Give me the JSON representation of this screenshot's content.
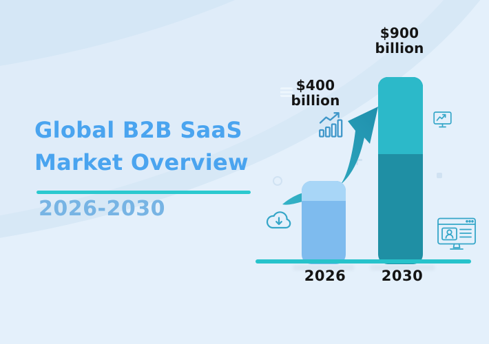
{
  "header": {
    "title_line1": "Global B2B SaaS",
    "title_line2": "Market Overview",
    "subtitle": "2026-2030"
  },
  "chart_data": {
    "type": "bar",
    "title": "Global B2B SaaS Market Overview",
    "subtitle": "2026-2030",
    "categories": [
      "2026",
      "2030"
    ],
    "values": [
      400,
      900
    ],
    "unit": "billion USD",
    "value_labels": [
      {
        "amount": "$400",
        "unit": "billion"
      },
      {
        "amount": "$900",
        "unit": "billion"
      }
    ],
    "ylim": [
      0,
      900
    ],
    "grid": false,
    "legend": false,
    "bar_colors": [
      "#7ebbee",
      "#1f8fa4"
    ]
  },
  "colors": {
    "bg": "#e4f0fb",
    "bg_band_top": "#d5e7f6",
    "bg_band_outer": "#d7e8f6",
    "bg_band_inner": "#dfecf9",
    "title_blue": "#4aa4ef",
    "subtitle_blue": "#77b4e4",
    "divider_teal": "#2bc9cf",
    "label_dark": "#141414",
    "bar_2026_body": "#7ebbee",
    "bar_2026_cap": "#a8d6f7",
    "bar_2030_body": "#1f8fa4",
    "bar_2030_cap": "#2cb9c9",
    "baseline_teal": "#27c3cb",
    "arrow_grad_start": "#33b2c6",
    "arrow_grad_end": "#2090ad",
    "icon_stroke_blue": "#3f97c9",
    "icon_stroke_teal": "#35a6c8",
    "deco": "#d0e2f2",
    "deco_light": "#edf6fd",
    "shadow": "#d7e4f0"
  },
  "icons": {
    "bar_chart_trend": "mini bar chart with rising arrow",
    "curved_growth_arrow": "large curved arrow pointing up-right",
    "cloud_download": "cloud with downward arrow",
    "monitor_analytics": "monitor screen with trend line",
    "browser_profile": "browser window with profile card and text lines"
  }
}
